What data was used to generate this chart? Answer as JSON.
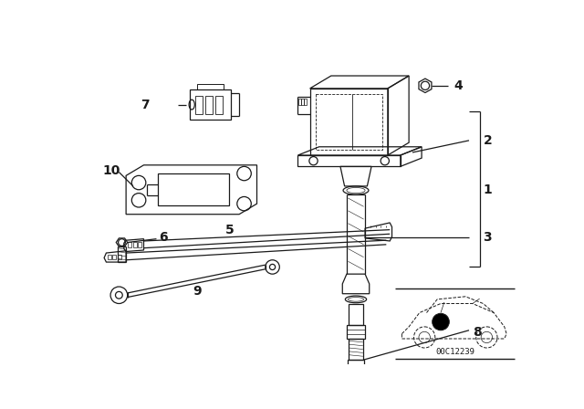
{
  "bg_color": "#ffffff",
  "line_color": "#1a1a1a",
  "diagram_code": "00C12239",
  "font_size": 9,
  "font_size_bold": 10,
  "figsize": [
    6.4,
    4.48
  ],
  "dpi": 100
}
